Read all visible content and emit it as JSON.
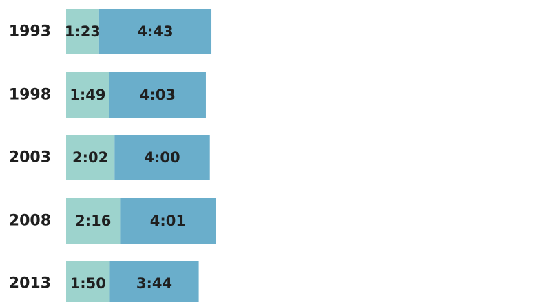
{
  "chart_data": {
    "type": "bar",
    "orientation": "horizontal",
    "stacked": true,
    "categories": [
      "1993",
      "1998",
      "2003",
      "2008",
      "2013"
    ],
    "series": [
      {
        "values": [
          83,
          109,
          122,
          136,
          110
        ],
        "labels": [
          "1:23",
          "1:49",
          "2:02",
          "2:16",
          "1:50"
        ],
        "color": "#9dd3cd"
      },
      {
        "values": [
          283,
          243,
          240,
          241,
          224
        ],
        "labels": [
          "4:43",
          "4:03",
          "4:00",
          "4:01",
          "3:44"
        ],
        "color": "#6aaecb"
      }
    ],
    "grid": false,
    "legend": "none"
  }
}
